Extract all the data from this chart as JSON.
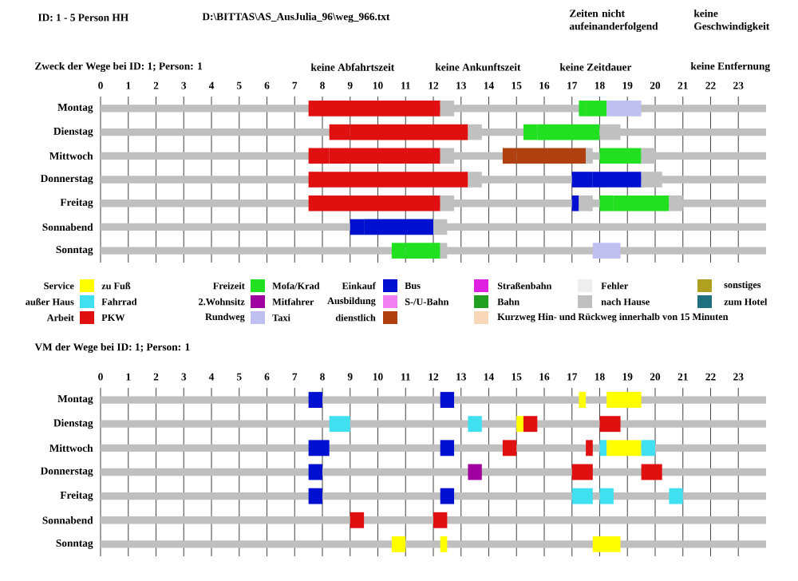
{
  "chart_data": [
    {
      "type": "bar",
      "orientation": "horizontal",
      "title": "Zweck der Wege bei ID: 1; Person: 1",
      "annotations": [
        "ID: 1 - 5 Person HH",
        "D:\\BITTAS\\AS_AusJulia_96\\weg_966.txt",
        "Zeiten nicht aufeinanderfolgend",
        "keine Geschwindigkeit",
        "keine Abfahrtszeit",
        "keine Ankunftszeit",
        "keine Zeitdauer",
        "keine Entfernung"
      ],
      "categories": [
        "Montag",
        "Dienstag",
        "Mittwoch",
        "Donnerstag",
        "Freitag",
        "Sonnabend",
        "Sonntag"
      ],
      "xlim": [
        0,
        24
      ],
      "xticks": [
        0,
        1,
        2,
        3,
        4,
        5,
        6,
        7,
        8,
        9,
        10,
        11,
        12,
        13,
        14,
        15,
        16,
        17,
        18,
        19,
        20,
        21,
        22,
        23
      ],
      "grid": true,
      "series": [
        {
          "type": "bar",
          "base": [
            8.0,
            9.0,
            8.25,
            8.0,
            8.0,
            9.5,
            11.0
          ],
          "values": [
            4.25,
            4.25,
            4.0,
            5.25,
            4.25,
            2.5,
            1.25
          ],
          "colors": [
            "#e01010",
            "#e01010",
            "#e01010",
            "#e01010",
            "#e01010",
            "#0010d0",
            "#20e020"
          ]
        },
        {
          "type": "bar",
          "base": [
            17.5,
            15.75,
            15.0,
            17.75,
            18.5,
            null,
            null
          ],
          "values": [
            0.75,
            2.25,
            2.5,
            1.75,
            2.0,
            null,
            null
          ],
          "colors": [
            "#20e020",
            "#20e020",
            "#b04010",
            "#0010d0",
            "#20e020",
            null,
            null
          ]
        },
        {
          "type": "bar",
          "base": [
            7.5,
            8.25,
            7.5,
            7.5,
            7.5,
            9.0,
            10.5
          ],
          "values": [
            0.5,
            0.75,
            0.75,
            0.5,
            0.5,
            0.5,
            0.5
          ],
          "colors": [
            "#e01010",
            "#e01010",
            "#e01010",
            "#e01010",
            "#e01010",
            "#0010d0",
            "#20e020"
          ]
        },
        {
          "type": "bar",
          "base": [
            12.25,
            13.25,
            12.25,
            13.25,
            12.25,
            12.0,
            12.25
          ],
          "values": [
            0.5,
            0.5,
            0.5,
            0.5,
            0.5,
            0.5,
            0.25
          ],
          "colors": [
            "#c0c0c0",
            "#c0c0c0",
            "#c0c0c0",
            "#c0c0c0",
            "#c0c0c0",
            "#c0c0c0",
            "#c0c0c0"
          ]
        },
        {
          "type": "bar",
          "base": [
            17.25,
            15.25,
            14.5,
            17.0,
            17.0,
            null,
            17.75
          ],
          "values": [
            0.25,
            0.5,
            0.5,
            0.75,
            0.25,
            null,
            1.0
          ],
          "colors": [
            "#20e020",
            "#20e020",
            "#b04010",
            "#0010d0",
            "#0010d0",
            null,
            "#c0c0f0"
          ]
        },
        {
          "type": "bar",
          "base": [
            18.25,
            18.0,
            17.5,
            19.5,
            17.25,
            null,
            null
          ],
          "values": [
            1.25,
            0.75,
            0.25,
            0.75,
            0.5,
            null,
            null
          ],
          "colors": [
            "#c0c0f0",
            "#c0c0c0",
            "#c0c0c0",
            "#c0c0c0",
            "#c0c0c0",
            null,
            null
          ]
        },
        {
          "type": "bar",
          "base": [
            null,
            null,
            18.0,
            null,
            18.0,
            null,
            null
          ],
          "values": [
            null,
            null,
            1.5,
            null,
            0.5,
            null,
            null
          ],
          "colors": [
            null,
            null,
            "#20e020",
            null,
            "#20e020",
            null,
            null
          ]
        },
        {
          "type": "bar",
          "base": [
            null,
            null,
            19.5,
            null,
            20.5,
            null,
            null
          ],
          "values": [
            null,
            null,
            0.5,
            null,
            0.5,
            null,
            null
          ],
          "colors": [
            null,
            null,
            "#c0c0c0",
            null,
            "#c0c0c0",
            null,
            null
          ]
        }
      ]
    },
    {
      "type": "other",
      "annotations": [
        "Service",
        "Freizeit",
        "Einkauf",
        "außer Haus",
        "2.Wohnsitz",
        "Ausbildung",
        "Arbeit",
        "Rundweg"
      ],
      "categories": [
        "zu Fuß",
        "Mofa/Krad",
        "Bus",
        "Straßenbahn",
        "Fehler",
        "sonstiges",
        "Fahrrad",
        "Mitfahrer",
        "S-/U-Bahn",
        "Bahn",
        "nach Hause",
        "zum Hotel",
        "PKW",
        "Taxi",
        "dienstlich",
        "Kurzweg Hin- und Rückweg innerhalb von 15 Minuten"
      ],
      "colors": [
        "#ffff00",
        "#20e020",
        "#0010d0",
        "#e020e0",
        "#eeeeee",
        "#b0a020",
        "#40e0f0",
        "#a000a0",
        "#f080f0",
        "#20a020",
        "#c0c0c0",
        "#207080",
        "#e01010",
        "#c0c0f0",
        "#b04010",
        "#f8d8b8"
      ]
    },
    {
      "type": "bar",
      "orientation": "horizontal",
      "title": "VM der Wege bei ID: 1; Person: 1",
      "categories": [
        "Montag",
        "Dienstag",
        "Mittwoch",
        "Donnerstag",
        "Freitag",
        "Sonnabend",
        "Sonntag"
      ],
      "xlim": [
        0,
        24
      ],
      "xticks": [
        0,
        1,
        2,
        3,
        4,
        5,
        6,
        7,
        8,
        9,
        10,
        11,
        12,
        13,
        14,
        15,
        16,
        17,
        18,
        19,
        20,
        21,
        22,
        23
      ],
      "grid": true,
      "series": [
        {
          "type": "bar",
          "base": [
            7.5,
            8.25,
            7.5,
            7.5,
            7.5,
            9.0,
            10.5
          ],
          "values": [
            0.5,
            0.75,
            0.75,
            0.5,
            0.5,
            0.5,
            0.5
          ],
          "colors": [
            "#0010d0",
            "#40e0f0",
            "#0010d0",
            "#0010d0",
            "#0010d0",
            "#e01010",
            "#ffff00"
          ]
        },
        {
          "type": "bar",
          "base": [
            12.25,
            13.25,
            12.25,
            13.25,
            12.25,
            12.0,
            12.25
          ],
          "values": [
            0.5,
            0.5,
            0.5,
            0.5,
            0.5,
            0.5,
            0.25
          ],
          "colors": [
            "#0010d0",
            "#40e0f0",
            "#0010d0",
            "#a000a0",
            "#0010d0",
            "#e01010",
            "#ffff00"
          ]
        },
        {
          "type": "bar",
          "base": [
            17.25,
            15.0,
            14.5,
            17.0,
            17.0,
            null,
            17.75
          ],
          "values": [
            0.25,
            0.25,
            0.5,
            0.75,
            0.75,
            null,
            1.0
          ],
          "colors": [
            "#ffff00",
            "#ffff00",
            "#e01010",
            "#e01010",
            "#40e0f0",
            null,
            "#ffff00"
          ]
        },
        {
          "type": "bar",
          "base": [
            18.25,
            15.25,
            17.5,
            19.5,
            18.0,
            null,
            null
          ],
          "values": [
            1.25,
            0.5,
            0.25,
            0.75,
            0.5,
            null,
            null
          ],
          "colors": [
            "#ffff00",
            "#e01010",
            "#e01010",
            "#e01010",
            "#40e0f0",
            null,
            null
          ]
        },
        {
          "type": "bar",
          "base": [
            null,
            18.0,
            18.0,
            null,
            20.5,
            null,
            null
          ],
          "values": [
            null,
            0.75,
            0.25,
            null,
            0.5,
            null,
            null
          ],
          "colors": [
            null,
            "#e01010",
            "#40e0f0",
            null,
            "#40e0f0",
            null,
            null
          ]
        },
        {
          "type": "bar",
          "base": [
            null,
            null,
            18.25,
            null,
            null,
            null,
            null
          ],
          "values": [
            null,
            null,
            1.25,
            null,
            null,
            null,
            null
          ],
          "colors": [
            null,
            null,
            "#ffff00",
            null,
            null,
            null,
            null
          ]
        },
        {
          "type": "bar",
          "base": [
            null,
            null,
            19.5,
            null,
            null,
            null,
            null
          ],
          "values": [
            null,
            null,
            0.5,
            null,
            null,
            null,
            null
          ],
          "colors": [
            null,
            null,
            "#40e0f0",
            null,
            null,
            null,
            null
          ]
        }
      ]
    }
  ]
}
